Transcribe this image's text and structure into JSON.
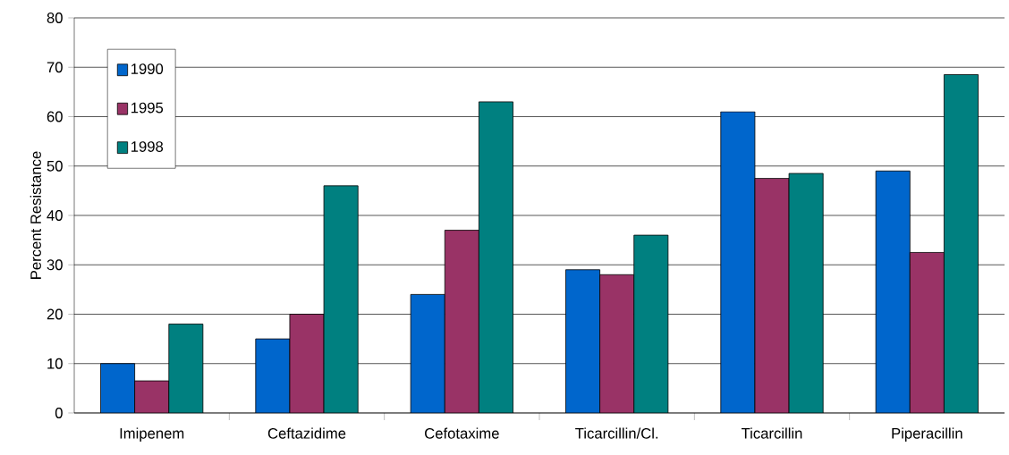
{
  "chart_data": {
    "type": "bar",
    "ylabel": "Percent Resistance",
    "categories": [
      "Imipenem",
      "Ceftazidime",
      "Cefotaxime",
      "Ticarcillin/Cl.",
      "Ticarcillin",
      "Piperacillin"
    ],
    "series": [
      {
        "name": "1990",
        "color": "#0066cc",
        "values": [
          10,
          15,
          24,
          29,
          61,
          49
        ]
      },
      {
        "name": "1995",
        "color": "#993366",
        "values": [
          6.5,
          20,
          37,
          28,
          47.5,
          32.5
        ]
      },
      {
        "name": "1998",
        "color": "#008080",
        "values": [
          18,
          46,
          63,
          36,
          48.5,
          68.5
        ]
      }
    ],
    "ylim": [
      0,
      80
    ],
    "yticks": [
      0,
      10,
      20,
      30,
      40,
      50,
      60,
      70,
      80
    ],
    "grid": "y",
    "legend": "top left"
  }
}
